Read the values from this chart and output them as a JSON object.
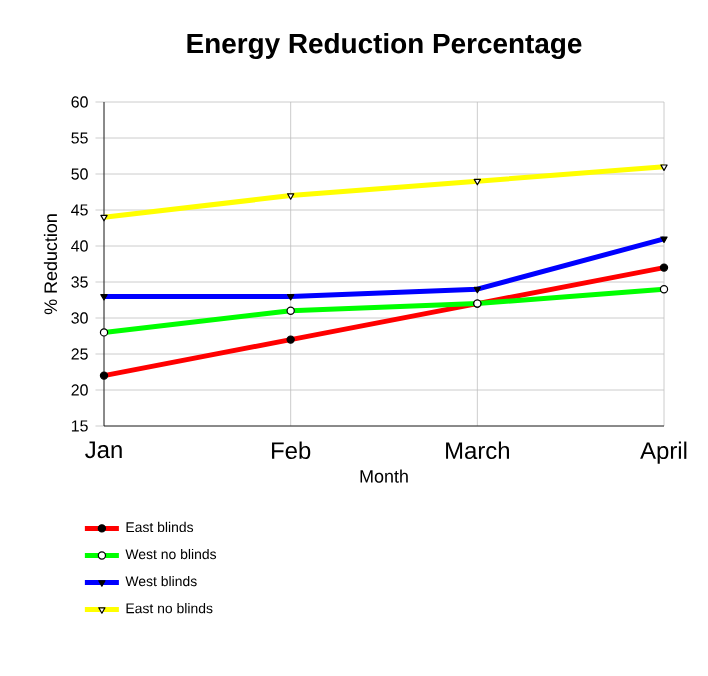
{
  "chart_data": {
    "type": "line",
    "title": "Energy Reduction Percentage",
    "xlabel": "Month",
    "ylabel": "% Reduction",
    "categories": [
      "Jan",
      "Feb",
      "March",
      "April"
    ],
    "series": [
      {
        "name": "East blinds",
        "color": "#ff0000",
        "marker": "circle",
        "values": [
          22,
          27,
          32,
          37
        ]
      },
      {
        "name": "West no blinds",
        "color": "#00ff00",
        "marker": "circle",
        "values": [
          28,
          31,
          32,
          34
        ]
      },
      {
        "name": "West blinds",
        "color": "#0000ff",
        "marker": "triangle",
        "values": [
          33,
          33,
          34,
          41
        ]
      },
      {
        "name": "East no blinds",
        "color": "#ffff00",
        "marker": "triangle",
        "values": [
          44,
          47,
          49,
          51
        ]
      }
    ],
    "ylim": [
      15,
      60
    ],
    "yticks": [
      15,
      20,
      25,
      30,
      35,
      40,
      45,
      50,
      55,
      60
    ],
    "grid": true,
    "legend": "bottom left",
    "line_style": "solid"
  }
}
